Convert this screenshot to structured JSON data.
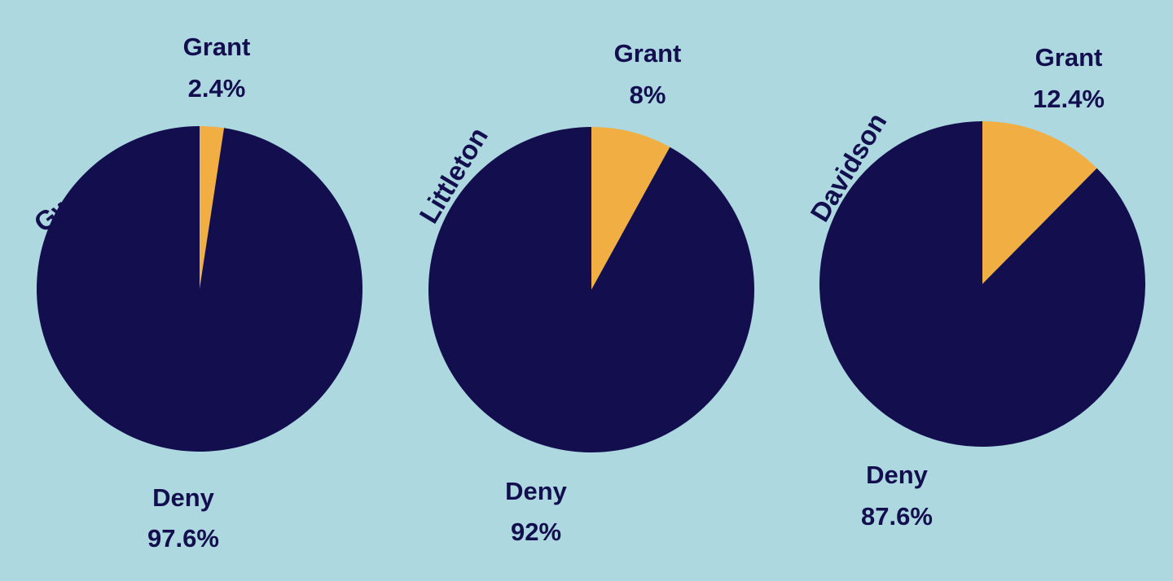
{
  "background": "#add8e0",
  "chart_data": [
    {
      "type": "pie",
      "name": "Gwathney",
      "categories": [
        "Grant",
        "Deny"
      ],
      "values": [
        2.4,
        97.6
      ],
      "value_labels": [
        "2.4%",
        "97.6%"
      ],
      "colors": [
        "#f0ae43",
        "#130f4f"
      ],
      "label_color": "#130f4f"
    },
    {
      "type": "pie",
      "name": "Littleton",
      "categories": [
        "Grant",
        "Deny"
      ],
      "values": [
        8,
        92
      ],
      "value_labels": [
        "8%",
        "92%"
      ],
      "colors": [
        "#f0ae43",
        "#130f4f"
      ],
      "label_color": "#130f4f"
    },
    {
      "type": "pie",
      "name": "Davidson",
      "categories": [
        "Grant",
        "Deny"
      ],
      "values": [
        12.4,
        87.6
      ],
      "value_labels": [
        "12.4%",
        "87.6%"
      ],
      "colors": [
        "#f0ae43",
        "#130f4f"
      ],
      "label_color": "#130f4f"
    }
  ]
}
